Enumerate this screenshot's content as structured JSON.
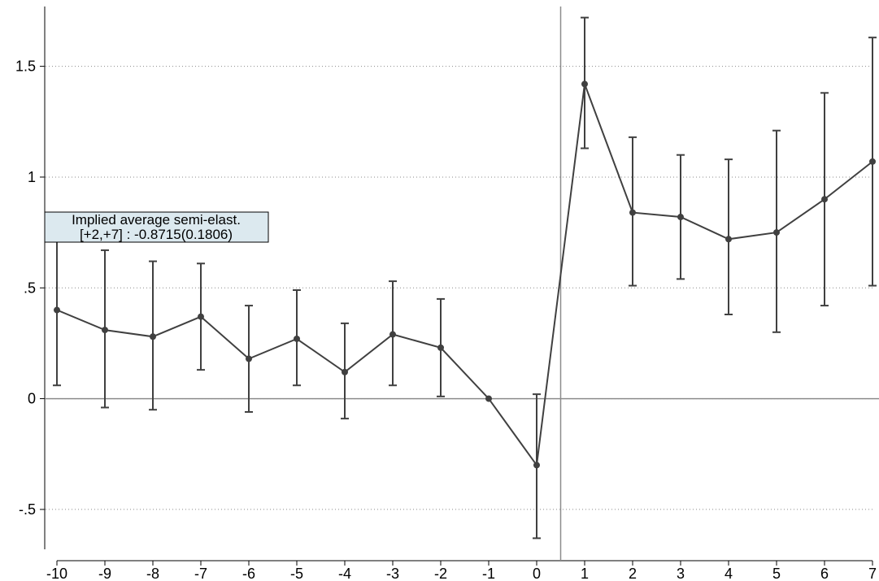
{
  "chart_data": {
    "type": "line",
    "title": "",
    "xlabel": "",
    "ylabel": "",
    "x": [
      -10,
      -9,
      -8,
      -7,
      -6,
      -5,
      -4,
      -3,
      -2,
      -1,
      0,
      1,
      2,
      3,
      4,
      5,
      6,
      7
    ],
    "xticks": [
      "-10",
      "-9",
      "-8",
      "-7",
      "-6",
      "-5",
      "-4",
      "-3",
      "-2",
      "-1",
      "0",
      "1",
      "2",
      "3",
      "4",
      "5",
      "6",
      "7"
    ],
    "yticks": [
      {
        "value": 1.5,
        "label": "1.5"
      },
      {
        "value": 1,
        "label": "1"
      },
      {
        "value": 0.5,
        "label": ".5"
      },
      {
        "value": 0,
        "label": "0"
      },
      {
        "value": -0.5,
        "label": "-.5"
      }
    ],
    "ylim": [
      -0.68,
      1.77
    ],
    "xlim": [
      -10,
      7
    ],
    "grid": "horizontal-dotted",
    "reference_lines": {
      "y": 0,
      "x": 0.5
    },
    "series": [
      {
        "values": [
          0.4,
          0.31,
          0.28,
          0.37,
          0.18,
          0.27,
          0.12,
          0.29,
          0.23,
          0.0,
          -0.3,
          1.42,
          0.84,
          0.82,
          0.72,
          0.75,
          0.9,
          1.07
        ],
        "ci_lower": [
          0.06,
          -0.04,
          -0.05,
          0.13,
          -0.06,
          0.06,
          -0.09,
          0.06,
          0.01,
          0.0,
          -0.63,
          1.13,
          0.51,
          0.54,
          0.38,
          0.3,
          0.42,
          0.51
        ],
        "ci_upper": [
          0.72,
          0.67,
          0.62,
          0.61,
          0.42,
          0.49,
          0.34,
          0.53,
          0.45,
          0.0,
          0.02,
          1.72,
          1.18,
          1.1,
          1.08,
          1.21,
          1.38,
          1.63
        ],
        "color": "#404040"
      }
    ],
    "annotation": {
      "line1": "Implied average semi-elast.",
      "line2": "[+2,+7] : -0.8715(0.1806)",
      "background": "#dce9ef"
    }
  }
}
